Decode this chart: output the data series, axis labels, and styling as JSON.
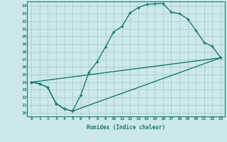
{
  "xlabel": "Humidex (Indice chaleur)",
  "background_color": "#cce8ec",
  "grid_color": "#aacccc",
  "line_color": "#1a7a6e",
  "xlim": [
    -0.5,
    23.5
  ],
  "ylim": [
    9.5,
    24.6
  ],
  "xticks": [
    0,
    1,
    2,
    3,
    4,
    5,
    6,
    7,
    8,
    9,
    10,
    11,
    12,
    13,
    14,
    15,
    16,
    17,
    18,
    19,
    20,
    21,
    22,
    23
  ],
  "yticks": [
    10,
    11,
    12,
    13,
    14,
    15,
    16,
    17,
    18,
    19,
    20,
    21,
    22,
    23,
    24
  ],
  "curve1_x": [
    0,
    1,
    2,
    3,
    4,
    5,
    6,
    7,
    8,
    9,
    10,
    11,
    12,
    13,
    14,
    15,
    16,
    17,
    18,
    19,
    20,
    21,
    22,
    23
  ],
  "curve1_y": [
    14.0,
    13.8,
    13.3,
    11.2,
    10.5,
    10.2,
    12.3,
    15.3,
    16.7,
    18.6,
    20.6,
    21.3,
    23.1,
    23.8,
    24.2,
    24.3,
    24.3,
    23.2,
    23.0,
    22.3,
    20.8,
    19.2,
    18.7,
    17.2
  ],
  "curve2_x": [
    0,
    1,
    2,
    3,
    4,
    5,
    23
  ],
  "curve2_y": [
    14.0,
    13.8,
    13.3,
    11.2,
    10.5,
    10.2,
    17.2
  ],
  "curve3_x": [
    0,
    23
  ],
  "curve3_y": [
    14.0,
    17.2
  ]
}
